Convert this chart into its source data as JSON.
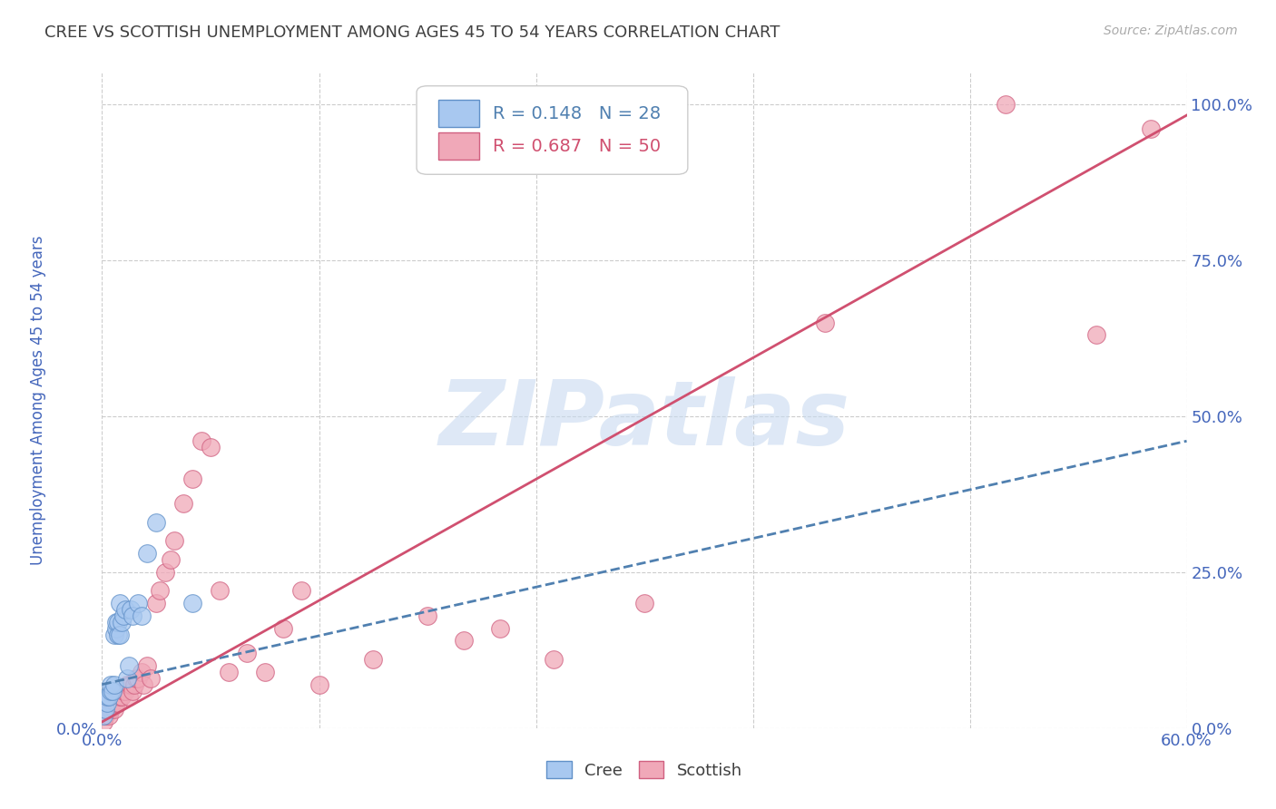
{
  "title": "CREE VS SCOTTISH UNEMPLOYMENT AMONG AGES 45 TO 54 YEARS CORRELATION CHART",
  "source": "Source: ZipAtlas.com",
  "ylabel": "Unemployment Among Ages 45 to 54 years",
  "xlim": [
    0.0,
    0.6
  ],
  "ylim": [
    0.0,
    1.05
  ],
  "xticks": [
    0.0,
    0.12,
    0.24,
    0.36,
    0.48,
    0.6
  ],
  "yticks": [
    0.0,
    0.25,
    0.5,
    0.75,
    1.0
  ],
  "ytick_labels_right": [
    "0.0%",
    "25.0%",
    "50.0%",
    "75.0%",
    "100.0%"
  ],
  "background_color": "#ffffff",
  "grid_color": "#cccccc",
  "title_color": "#404040",
  "watermark_text": "ZIPatlas",
  "watermark_color": "#c8daf0",
  "cree_color": "#a8c8f0",
  "scottish_color": "#f0a8b8",
  "cree_edge_color": "#6090c8",
  "scottish_edge_color": "#d06080",
  "cree_line_color": "#5080b0",
  "scottish_line_color": "#d05070",
  "axis_label_color": "#4466bb",
  "R_cree": 0.148,
  "N_cree": 28,
  "R_scottish": 0.687,
  "N_scottish": 50,
  "cree_x": [
    0.001,
    0.002,
    0.003,
    0.003,
    0.004,
    0.005,
    0.005,
    0.006,
    0.007,
    0.007,
    0.008,
    0.008,
    0.009,
    0.009,
    0.01,
    0.01,
    0.011,
    0.012,
    0.013,
    0.014,
    0.015,
    0.016,
    0.017,
    0.02,
    0.022,
    0.025,
    0.03,
    0.05
  ],
  "cree_y": [
    0.02,
    0.03,
    0.04,
    0.05,
    0.05,
    0.06,
    0.07,
    0.06,
    0.07,
    0.15,
    0.16,
    0.17,
    0.15,
    0.17,
    0.15,
    0.2,
    0.17,
    0.18,
    0.19,
    0.08,
    0.1,
    0.19,
    0.18,
    0.2,
    0.18,
    0.28,
    0.33,
    0.2
  ],
  "scottish_x": [
    0.001,
    0.002,
    0.003,
    0.004,
    0.005,
    0.006,
    0.007,
    0.008,
    0.009,
    0.01,
    0.011,
    0.012,
    0.013,
    0.014,
    0.015,
    0.016,
    0.017,
    0.018,
    0.019,
    0.02,
    0.022,
    0.023,
    0.025,
    0.027,
    0.03,
    0.032,
    0.035,
    0.038,
    0.04,
    0.045,
    0.05,
    0.055,
    0.06,
    0.065,
    0.07,
    0.08,
    0.09,
    0.1,
    0.11,
    0.12,
    0.15,
    0.18,
    0.2,
    0.22,
    0.25,
    0.3,
    0.4,
    0.5,
    0.55,
    0.58
  ],
  "scottish_y": [
    0.01,
    0.02,
    0.03,
    0.02,
    0.03,
    0.04,
    0.03,
    0.04,
    0.04,
    0.05,
    0.05,
    0.06,
    0.06,
    0.07,
    0.05,
    0.07,
    0.06,
    0.07,
    0.08,
    0.08,
    0.09,
    0.07,
    0.1,
    0.08,
    0.2,
    0.22,
    0.25,
    0.27,
    0.3,
    0.36,
    0.4,
    0.46,
    0.45,
    0.22,
    0.09,
    0.12,
    0.09,
    0.16,
    0.22,
    0.07,
    0.11,
    0.18,
    0.14,
    0.16,
    0.11,
    0.2,
    0.65,
    1.0,
    0.63,
    0.96
  ]
}
